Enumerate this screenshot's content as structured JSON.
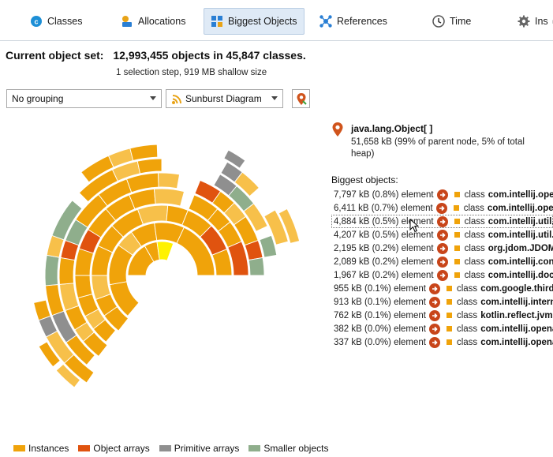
{
  "tabs": [
    {
      "label": "Classes",
      "icon": "classes-icon",
      "active": false
    },
    {
      "label": "Allocations",
      "icon": "allocations-icon",
      "active": false
    },
    {
      "label": "Biggest Objects",
      "icon": "biggest-objects-icon",
      "active": true
    },
    {
      "label": "References",
      "icon": "references-icon",
      "active": false
    },
    {
      "label": "Time",
      "icon": "time-icon",
      "active": false
    },
    {
      "label": "Ins",
      "icon": "inspections-icon",
      "active": false
    }
  ],
  "header": {
    "label": "Current object set:",
    "value": "12,993,455 objects in 45,847 classes.",
    "subtitle": "1 selection step, 919 MB shallow size"
  },
  "controls": {
    "grouping": "No grouping",
    "view": "Sunburst Diagram"
  },
  "selected_object": {
    "name": "java.lang.Object[ ]",
    "description": "51,658 kB (99% of parent node, 5% of total heap)"
  },
  "biggest_objects": {
    "title": "Biggest objects:",
    "rows": [
      {
        "size": "7,797 kB (0.8%) element",
        "cls": "class",
        "name": "com.intellij.openapi"
      },
      {
        "size": "6,411 kB (0.7%) element",
        "cls": "class",
        "name": "com.intellij.openapi"
      },
      {
        "size": "4,884 kB (0.5%) element",
        "cls": "class",
        "name": "com.intellij.util.S"
      },
      {
        "size": "4,207 kB (0.5%) element",
        "cls": "class",
        "name": "com.intellij.util.co"
      },
      {
        "size": "2,195 kB (0.2%) element",
        "cls": "class",
        "name": "org.jdom.JDOMN"
      },
      {
        "size": "2,089 kB (0.2%) element",
        "cls": "class",
        "name": "com.intellij.cont"
      },
      {
        "size": "1,967 kB (0.2%) element",
        "cls": "class",
        "name": "com.intellij.docu"
      },
      {
        "size": "955 kB (0.1%) element",
        "cls": "class",
        "name": "com.google.third"
      },
      {
        "size": "913 kB (0.1%) element",
        "cls": "class",
        "name": "com.intellij.intern"
      },
      {
        "size": "762 kB (0.1%) element",
        "cls": "class",
        "name": "kotlin.reflect.jvm"
      },
      {
        "size": "382 kB (0.0%) element",
        "cls": "class",
        "name": "com.intellij.opena"
      },
      {
        "size": "337 kB (0.0%) element",
        "cls": "class",
        "name": "com.intellij.opena"
      }
    ]
  },
  "legend": [
    {
      "label": "Instances",
      "color": "#f0a30a"
    },
    {
      "label": "Object arrays",
      "color": "#e0530f"
    },
    {
      "label": "Primitive arrays",
      "color": "#8f8f8f"
    },
    {
      "label": "Smaller objects",
      "color": "#8fae8c"
    }
  ],
  "colors": {
    "instances": "#f0a30a",
    "instances_light": "#f7c04a",
    "object_arrays": "#e0530f",
    "primitive_arrays": "#8f8f8f",
    "smaller_objects": "#8fae8c",
    "highlight": "#fff200",
    "accent_tab": "#dfeaf6"
  }
}
